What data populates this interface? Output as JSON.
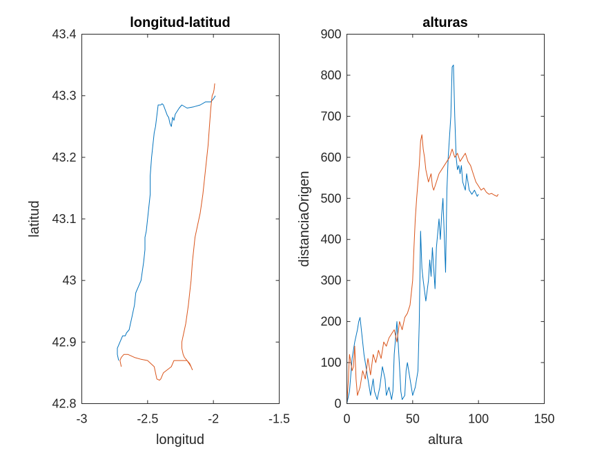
{
  "chart_data": [
    {
      "type": "line",
      "title": "longitud-latitud",
      "xlabel": "longitud",
      "ylabel": "latitud",
      "xlim": [
        -3,
        -1.5
      ],
      "ylim": [
        42.8,
        43.4
      ],
      "xticks": [
        -3,
        -2.5,
        -2,
        -1.5
      ],
      "xtick_labels": [
        "-3",
        "-2.5",
        "-2",
        "-1.5"
      ],
      "yticks": [
        42.8,
        42.9,
        43,
        43.1,
        43.2,
        43.3,
        43.4
      ],
      "ytick_labels": [
        "42.8",
        "42.9",
        "43",
        "43.1",
        "43.2",
        "43.3",
        "43.4"
      ],
      "grid": false,
      "series": [
        {
          "color": "#0072BD",
          "x": [
            -1.985,
            -2.0,
            -2.02,
            -2.06,
            -2.1,
            -2.15,
            -2.2,
            -2.24,
            -2.26,
            -2.29,
            -2.3,
            -2.31,
            -2.32,
            -2.33,
            -2.34,
            -2.35,
            -2.38,
            -2.39,
            -2.4,
            -2.42,
            -2.44,
            -2.45,
            -2.46,
            -2.47,
            -2.48,
            -2.48,
            -2.49,
            -2.5,
            -2.51,
            -2.52,
            -2.52,
            -2.53,
            -2.55,
            -2.57,
            -2.59,
            -2.6,
            -2.61,
            -2.62,
            -2.63,
            -2.64,
            -2.66,
            -2.67,
            -2.69,
            -2.7,
            -2.71,
            -2.72,
            -2.73,
            -2.73,
            -2.72
          ],
          "y": [
            43.3,
            43.295,
            43.29,
            43.29,
            43.285,
            43.282,
            43.28,
            43.285,
            43.28,
            43.27,
            43.26,
            43.265,
            43.25,
            43.255,
            43.265,
            43.268,
            43.285,
            43.287,
            43.285,
            43.285,
            43.25,
            43.24,
            43.22,
            43.2,
            43.17,
            43.14,
            43.12,
            43.1,
            43.08,
            43.07,
            43.05,
            43.03,
            43.0,
            42.99,
            42.98,
            42.96,
            42.95,
            42.94,
            42.93,
            42.92,
            42.915,
            42.91,
            42.91,
            42.905,
            42.9,
            42.895,
            42.89,
            42.88,
            42.87
          ]
        },
        {
          "color": "#D95319",
          "x": [
            -1.99,
            -1.995,
            -2.0,
            -2.01,
            -2.02,
            -2.03,
            -2.04,
            -2.05,
            -2.06,
            -2.07,
            -2.08,
            -2.1,
            -2.12,
            -2.14,
            -2.15,
            -2.16,
            -2.17,
            -2.18,
            -2.19,
            -2.2,
            -2.21,
            -2.22,
            -2.23,
            -2.24,
            -2.24,
            -2.23,
            -2.22,
            -2.2,
            -2.18,
            -2.17,
            -2.16,
            -2.17,
            -2.2,
            -2.25,
            -2.3,
            -2.32,
            -2.35,
            -2.38,
            -2.4,
            -2.41,
            -2.43,
            -2.44,
            -2.45,
            -2.5,
            -2.55,
            -2.6,
            -2.65,
            -2.68,
            -2.7,
            -2.71,
            -2.7
          ],
          "y": [
            43.32,
            43.31,
            43.305,
            43.3,
            43.28,
            43.25,
            43.22,
            43.2,
            43.18,
            43.16,
            43.14,
            43.11,
            43.09,
            43.07,
            43.05,
            43.03,
            43.0,
            42.98,
            42.96,
            42.945,
            42.93,
            42.92,
            42.91,
            42.9,
            42.89,
            42.88,
            42.875,
            42.87,
            42.865,
            42.86,
            42.855,
            42.86,
            42.87,
            42.87,
            42.87,
            42.86,
            42.855,
            42.85,
            42.84,
            42.838,
            42.84,
            42.85,
            42.86,
            42.87,
            42.872,
            42.875,
            42.88,
            42.88,
            42.875,
            42.87,
            42.86
          ]
        }
      ]
    },
    {
      "type": "line",
      "title": "alturas",
      "xlabel": "altura",
      "ylabel": "distanciaOrigen",
      "xlim": [
        0,
        150
      ],
      "ylim": [
        0,
        900
      ],
      "xticks": [
        0,
        50,
        100,
        150
      ],
      "xtick_labels": [
        "0",
        "50",
        "100",
        "150"
      ],
      "yticks": [
        0,
        100,
        200,
        300,
        400,
        500,
        600,
        700,
        800,
        900
      ],
      "ytick_labels": [
        "0",
        "100",
        "200",
        "300",
        "400",
        "500",
        "600",
        "700",
        "800",
        "900"
      ],
      "grid": false,
      "series": [
        {
          "color": "#0072BD",
          "x": [
            0,
            2,
            4,
            6,
            8,
            9,
            10,
            11,
            12,
            13,
            15,
            17,
            18,
            20,
            21,
            23,
            25,
            27,
            29,
            30,
            32,
            34,
            35,
            36,
            38,
            40,
            41,
            42,
            44,
            45,
            46,
            48,
            50,
            52,
            54,
            55,
            56,
            57,
            58,
            60,
            62,
            63,
            64,
            65,
            67,
            68,
            70,
            71,
            72,
            73,
            75,
            76,
            77,
            78,
            79,
            80,
            81,
            82,
            83,
            84,
            85,
            86,
            87,
            88,
            90,
            91,
            92,
            93,
            95,
            97,
            99,
            100
          ],
          "x_units": "altura",
          "y": [
            0,
            30,
            110,
            150,
            180,
            200,
            210,
            180,
            150,
            120,
            80,
            40,
            20,
            60,
            30,
            10,
            40,
            90,
            60,
            20,
            40,
            10,
            30,
            120,
            200,
            90,
            30,
            10,
            20,
            80,
            100,
            60,
            20,
            40,
            80,
            200,
            420,
            330,
            300,
            250,
            300,
            350,
            310,
            380,
            280,
            380,
            450,
            400,
            460,
            500,
            320,
            520,
            600,
            650,
            700,
            820,
            825,
            700,
            600,
            570,
            580,
            560,
            580,
            540,
            520,
            560,
            540,
            520,
            510,
            520,
            505,
            510
          ]
        },
        {
          "color": "#D95319",
          "x": [
            0,
            1,
            2,
            3,
            4,
            5,
            6,
            7,
            8,
            10,
            12,
            14,
            16,
            18,
            20,
            22,
            24,
            26,
            28,
            30,
            32,
            34,
            36,
            38,
            40,
            42,
            44,
            46,
            48,
            50,
            51,
            52,
            53,
            54,
            55,
            56,
            57,
            58,
            59,
            60,
            62,
            64,
            65,
            66,
            68,
            70,
            72,
            74,
            76,
            78,
            80,
            82,
            84,
            86,
            88,
            90,
            92,
            94,
            96,
            98,
            100,
            102,
            104,
            106,
            108,
            110,
            112,
            114,
            115
          ],
          "y": [
            0,
            50,
            120,
            100,
            80,
            90,
            140,
            60,
            20,
            40,
            80,
            60,
            110,
            70,
            120,
            100,
            130,
            110,
            150,
            140,
            160,
            170,
            180,
            150,
            200,
            180,
            210,
            220,
            240,
            300,
            380,
            450,
            500,
            540,
            580,
            640,
            655,
            620,
            600,
            570,
            540,
            560,
            530,
            520,
            540,
            560,
            570,
            580,
            590,
            600,
            620,
            600,
            610,
            590,
            600,
            610,
            590,
            580,
            560,
            540,
            530,
            520,
            525,
            515,
            510,
            512,
            508,
            505,
            510
          ]
        }
      ]
    }
  ]
}
